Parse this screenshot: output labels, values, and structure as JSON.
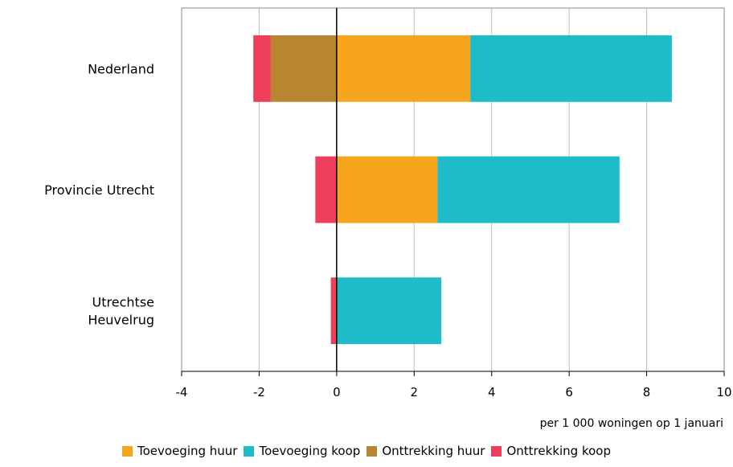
{
  "chart_data": {
    "type": "bar",
    "orientation": "horizontal",
    "stacked": true,
    "categories": [
      "Nederland",
      "Provincie Utrecht",
      "Utrechtse Heuvelrug"
    ],
    "series": [
      {
        "name": "Toevoeging huur",
        "color": "#F7A51D",
        "values": [
          3.45,
          2.6,
          0
        ]
      },
      {
        "name": "Toevoeging koop",
        "color": "#1EBCC8",
        "values": [
          5.2,
          4.7,
          2.7
        ]
      },
      {
        "name": "Onttrekking huur",
        "color": "#B8862F",
        "values": [
          -1.7,
          0,
          0
        ]
      },
      {
        "name": "Onttrekking koop",
        "color": "#EF3E5C",
        "values": [
          -0.45,
          -0.55,
          -0.15
        ]
      }
    ],
    "category_labels": [
      [
        "Nederland"
      ],
      [
        "Provincie Utrecht"
      ],
      [
        "Utrechtse",
        "Heuvelrug"
      ]
    ],
    "xlim": [
      -4,
      10
    ],
    "xticks": [
      -4,
      -2,
      0,
      2,
      4,
      6,
      8,
      10
    ],
    "xlabel": "per 1 000 woningen op 1 januari",
    "grid": true,
    "legend_position": "bottom"
  }
}
